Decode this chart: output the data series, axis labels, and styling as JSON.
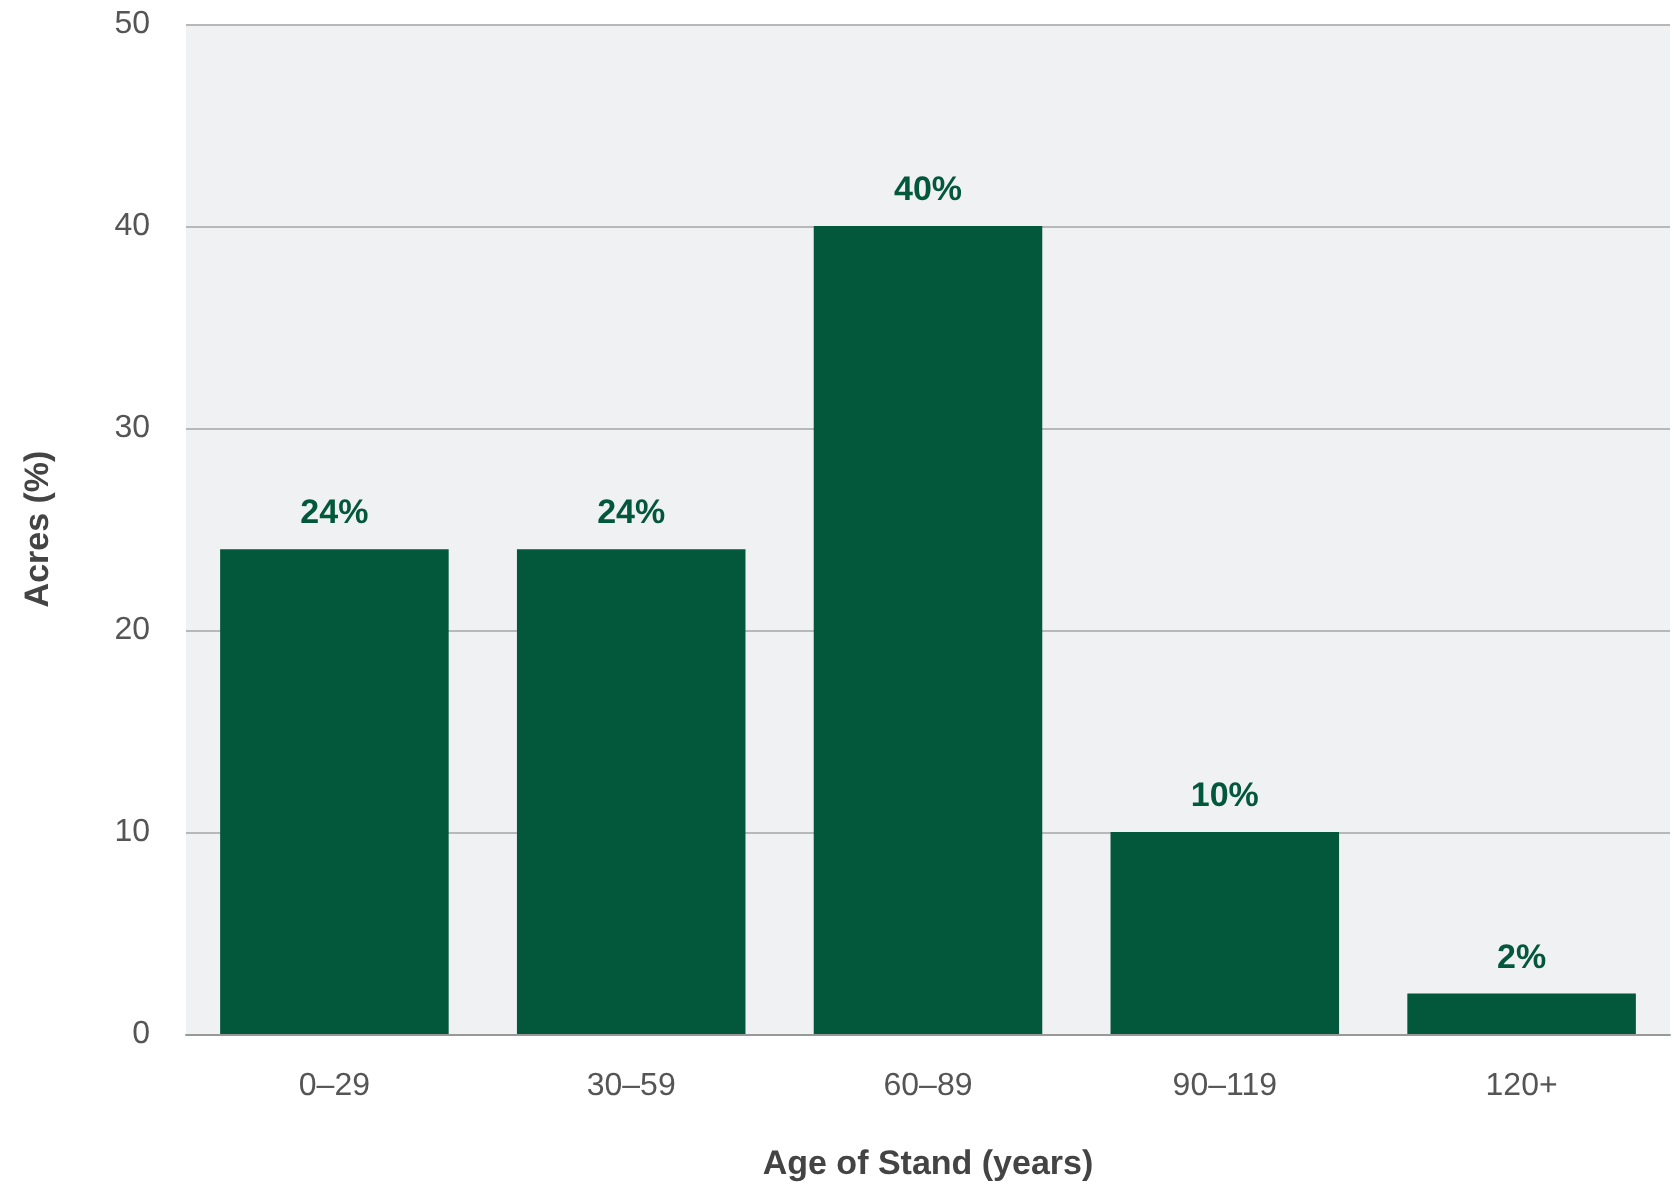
{
  "chart_data": {
    "type": "bar",
    "xlabel": "Age of Stand (years)",
    "ylabel": "Acres (%)",
    "categories": [
      "0–29",
      "30–59",
      "60–89",
      "90–119",
      "120+"
    ],
    "values": [
      24,
      24,
      40,
      10,
      2
    ],
    "value_labels": [
      "24%",
      "24%",
      "40%",
      "10%",
      "2%"
    ],
    "color": "#03573b",
    "ylim": [
      0,
      50
    ],
    "yticks": [
      0,
      10,
      20,
      30,
      40,
      50
    ],
    "grid": "y"
  }
}
